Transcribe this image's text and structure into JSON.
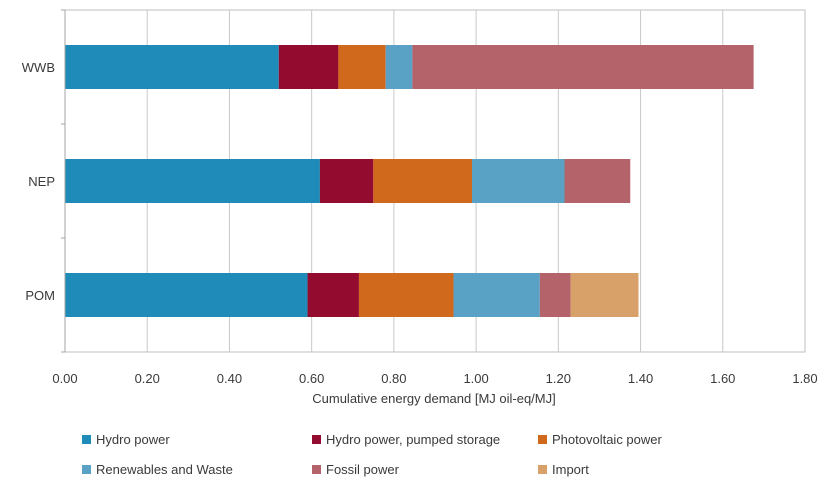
{
  "chart_data": {
    "type": "bar",
    "orientation": "horizontal",
    "stacked": true,
    "categories": [
      "WWB",
      "NEP",
      "POM"
    ],
    "series": [
      {
        "name": "Hydro power",
        "color": "#1e8bb8",
        "values": [
          0.52,
          0.62,
          0.59
        ]
      },
      {
        "name": "Hydro power, pumped storage",
        "color": "#930b2f",
        "values": [
          0.145,
          0.13,
          0.125
        ]
      },
      {
        "name": "Photovoltaic power",
        "color": "#d0691c",
        "values": [
          0.115,
          0.24,
          0.23
        ]
      },
      {
        "name": "Renewables and Waste",
        "color": "#5aa2c5",
        "values": [
          0.065,
          0.225,
          0.21
        ]
      },
      {
        "name": "Fossil power",
        "color": "#b5636a",
        "values": [
          0.83,
          0.16,
          0.075
        ]
      },
      {
        "name": "Import",
        "color": "#d9a16a",
        "values": [
          0,
          0,
          0.165
        ]
      }
    ],
    "xlabel": "Cumulative energy demand [MJ oil-eq/MJ]",
    "xlim": [
      0,
      1.8
    ],
    "xticks": [
      "0.00",
      "0.20",
      "0.40",
      "0.60",
      "0.80",
      "1.00",
      "1.20",
      "1.40",
      "1.60",
      "1.80"
    ],
    "grid": true,
    "legend_position": "bottom"
  }
}
